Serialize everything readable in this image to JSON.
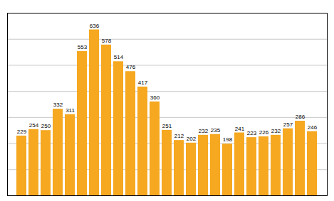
{
  "chart_data": {
    "type": "bar",
    "categories": [
      null,
      null,
      null,
      null,
      null,
      null,
      null,
      null,
      null,
      null,
      null,
      null,
      null,
      null,
      null,
      null,
      null,
      null,
      null,
      null,
      null,
      null,
      null,
      null,
      null
    ],
    "values": [
      229,
      254,
      250,
      332,
      311,
      553,
      636,
      578,
      514,
      476,
      417,
      360,
      251,
      212,
      202,
      232,
      235,
      198,
      241,
      223,
      226,
      232,
      257,
      286,
      246
    ],
    "color": "#F5A820",
    "ylim": [
      0,
      700
    ],
    "yticks": [
      0,
      100,
      200,
      300,
      400,
      500,
      600,
      700
    ],
    "grid": true,
    "data_labels": true,
    "tick_labels": false
  }
}
